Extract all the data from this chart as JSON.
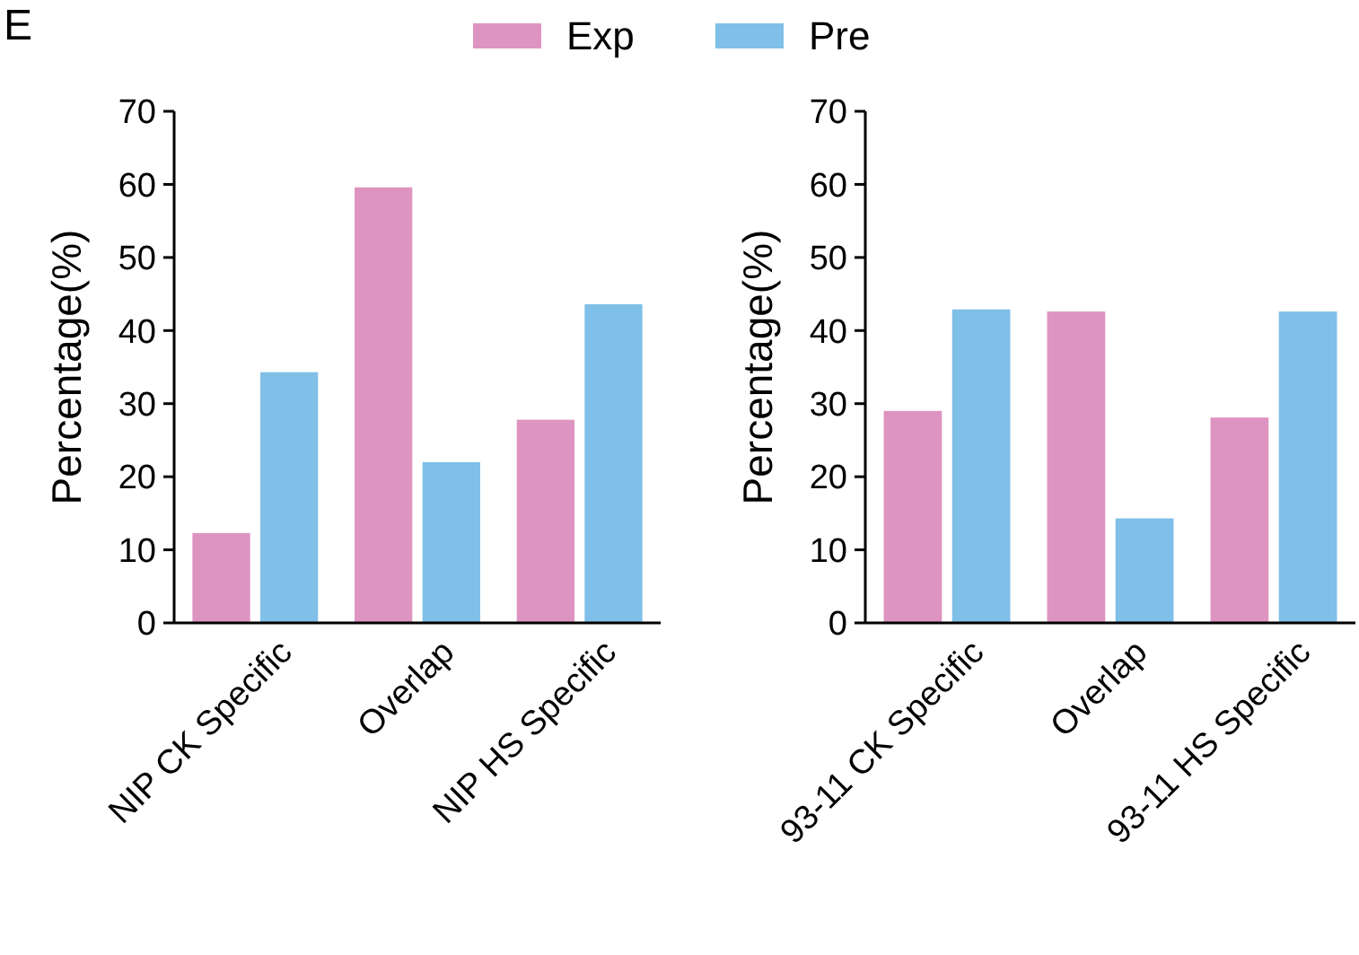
{
  "chart_data": [
    {
      "type": "bar",
      "annotations": [
        "E"
      ],
      "ylabel": "Percentage(%)",
      "categories": [
        "NIP CK Specific",
        "Overlap",
        "NIP HS Specific"
      ],
      "series": [
        {
          "name": "Exp",
          "color": "#de94c0",
          "values": [
            12.3,
            59.6,
            27.8
          ]
        },
        {
          "name": "Pre",
          "color": "#7fbfe8",
          "values": [
            34.3,
            22,
            43.6
          ]
        }
      ],
      "ylim": [
        0,
        70
      ],
      "yticks": [
        0,
        10,
        20,
        30,
        40,
        50,
        60,
        70
      ],
      "legend": "top"
    },
    {
      "type": "bar",
      "ylabel": "Percentage(%)",
      "categories": [
        "93-11 CK Specific",
        "Overlap",
        "93-11 HS Specific"
      ],
      "series": [
        {
          "name": "Exp",
          "color": "#de94c0",
          "values": [
            29,
            42.6,
            28.1
          ]
        },
        {
          "name": "Pre",
          "color": "#7fbfe8",
          "values": [
            42.9,
            14.3,
            42.6
          ]
        }
      ],
      "ylim": [
        0,
        70
      ],
      "yticks": [
        0,
        10,
        20,
        30,
        40,
        50,
        60,
        70
      ],
      "legend": "top"
    }
  ]
}
